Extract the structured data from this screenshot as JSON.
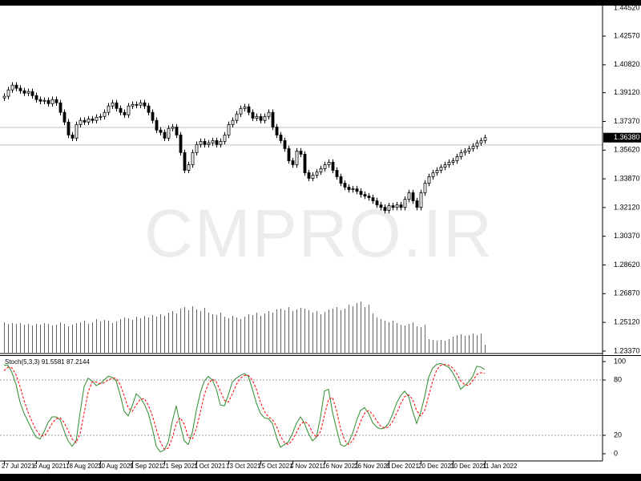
{
  "chart_data": [
    {
      "type": "candlestick",
      "watermark": "CMPRO.IR",
      "categories": [
        "27 Jul 2021",
        null,
        null,
        null,
        null,
        null,
        null,
        null,
        "6 Aug 2021",
        null,
        null,
        null,
        null,
        null,
        null,
        null,
        "18 Aug 2021",
        null,
        null,
        null,
        null,
        null,
        null,
        null,
        "30 Aug 2021",
        null,
        null,
        null,
        null,
        null,
        null,
        null,
        "9 Sep 2021",
        null,
        null,
        null,
        null,
        null,
        null,
        null,
        "21 Sep 2021",
        null,
        null,
        null,
        null,
        null,
        null,
        null,
        "1 Oct 2021",
        null,
        null,
        null,
        null,
        null,
        null,
        null,
        "13 Oct 2021",
        null,
        null,
        null,
        null,
        null,
        null,
        null,
        "25 Oct 2021",
        null,
        null,
        null,
        null,
        null,
        null,
        null,
        "4 Nov 2021",
        null,
        null,
        null,
        null,
        null,
        null,
        null,
        "16 Nov 2021",
        null,
        null,
        null,
        null,
        null,
        null,
        null,
        "26 Nov 2021",
        null,
        null,
        null,
        null,
        null,
        null,
        null,
        "8 Dec 2021",
        null,
        null,
        null,
        null,
        null,
        null,
        null,
        "20 Dec 2021",
        null,
        null,
        null,
        null,
        null,
        null,
        null,
        "30 Dec 2021",
        null,
        null,
        null,
        null,
        null,
        null,
        null,
        "11 Jan 2022"
      ],
      "open": [
        1.388,
        1.389,
        1.3929,
        1.3958,
        1.3939,
        1.3924,
        1.3909,
        1.3919,
        1.3894,
        1.387,
        1.386,
        1.3865,
        1.3845,
        1.387,
        1.385,
        1.3792,
        1.3733,
        1.3654,
        1.3635,
        1.3718,
        1.3743,
        1.3733,
        1.3752,
        1.3743,
        1.3762,
        1.3767,
        1.3792,
        1.3831,
        1.385,
        1.3816,
        1.3792,
        1.3777,
        1.3831,
        1.384,
        1.3836,
        1.385,
        1.3831,
        1.3792,
        1.3743,
        1.3684,
        1.367,
        1.3635,
        1.3694,
        1.3703,
        1.3654,
        1.3547,
        1.3439,
        1.3473,
        1.3547,
        1.3596,
        1.3615,
        1.3596,
        1.3606,
        1.362,
        1.3596,
        1.3615,
        1.3654,
        1.3718,
        1.3743,
        1.3782,
        1.3816,
        1.3826,
        1.3792,
        1.3757,
        1.3767,
        1.3743,
        1.3767,
        1.3792,
        1.3703,
        1.3654,
        1.362,
        1.3571,
        1.3497,
        1.3473,
        1.3556,
        1.3537,
        1.3424,
        1.339,
        1.3409,
        1.3429,
        1.3449,
        1.3473,
        1.3488,
        1.3439,
        1.34,
        1.336,
        1.3336,
        1.3321,
        1.3326,
        1.3311,
        1.3292,
        1.3282,
        1.3272,
        1.3253,
        1.3228,
        1.3213,
        1.3194,
        1.3223,
        1.3213,
        1.3228,
        1.3213,
        1.3262,
        1.3302,
        1.3253,
        1.3213,
        1.3302,
        1.336,
        1.34,
        1.3424,
        1.3439,
        1.3458,
        1.3473,
        1.3488,
        1.3497,
        1.3522,
        1.3547,
        1.3556,
        1.3571,
        1.3586,
        1.3606,
        1.362
      ],
      "high": [
        1.3908,
        1.3947,
        1.3976,
        1.3976,
        1.3957,
        1.3942,
        1.3937,
        1.3937,
        1.3912,
        1.3888,
        1.3883,
        1.3883,
        1.3888,
        1.3888,
        1.3868,
        1.381,
        1.3751,
        1.3672,
        1.3736,
        1.3761,
        1.3761,
        1.377,
        1.377,
        1.378,
        1.3785,
        1.381,
        1.3849,
        1.3868,
        1.3868,
        1.3834,
        1.381,
        1.3849,
        1.3858,
        1.3858,
        1.3868,
        1.3868,
        1.3849,
        1.381,
        1.3761,
        1.3702,
        1.3688,
        1.3712,
        1.3721,
        1.3721,
        1.3672,
        1.3565,
        1.3491,
        1.3565,
        1.3614,
        1.3633,
        1.3633,
        1.3624,
        1.3638,
        1.3638,
        1.3633,
        1.3672,
        1.3736,
        1.3761,
        1.38,
        1.3834,
        1.3844,
        1.3844,
        1.381,
        1.3785,
        1.3785,
        1.3785,
        1.381,
        1.381,
        1.3721,
        1.3672,
        1.3638,
        1.3589,
        1.3515,
        1.3574,
        1.3574,
        1.3555,
        1.3442,
        1.3427,
        1.3447,
        1.3467,
        1.3491,
        1.3506,
        1.3506,
        1.3457,
        1.3418,
        1.3378,
        1.3354,
        1.3344,
        1.3344,
        1.3329,
        1.331,
        1.33,
        1.329,
        1.3271,
        1.3246,
        1.3231,
        1.3241,
        1.3241,
        1.3246,
        1.3246,
        1.328,
        1.332,
        1.332,
        1.3271,
        1.332,
        1.3378,
        1.3418,
        1.3442,
        1.3457,
        1.3476,
        1.3491,
        1.3506,
        1.3515,
        1.354,
        1.3565,
        1.3574,
        1.3589,
        1.3604,
        1.3624,
        1.3638,
        1.3656
      ],
      "low": [
        1.3862,
        1.3872,
        1.3911,
        1.3921,
        1.3906,
        1.3891,
        1.3891,
        1.3876,
        1.3852,
        1.3842,
        1.3842,
        1.3827,
        1.3827,
        1.3832,
        1.3774,
        1.3715,
        1.3636,
        1.3617,
        1.3617,
        1.37,
        1.3715,
        1.3715,
        1.3725,
        1.3725,
        1.3744,
        1.3749,
        1.3774,
        1.3813,
        1.3798,
        1.3774,
        1.3759,
        1.3759,
        1.3813,
        1.3818,
        1.3818,
        1.3813,
        1.3774,
        1.3725,
        1.3666,
        1.3652,
        1.3617,
        1.3617,
        1.3676,
        1.3636,
        1.3529,
        1.3421,
        1.3421,
        1.3455,
        1.3529,
        1.3578,
        1.3578,
        1.3578,
        1.3588,
        1.3578,
        1.3578,
        1.3597,
        1.3636,
        1.37,
        1.3725,
        1.3764,
        1.3798,
        1.3774,
        1.3739,
        1.3739,
        1.3725,
        1.3725,
        1.3749,
        1.3685,
        1.3636,
        1.3602,
        1.3553,
        1.3479,
        1.3455,
        1.3455,
        1.3519,
        1.3406,
        1.3372,
        1.3372,
        1.3391,
        1.3411,
        1.3431,
        1.3455,
        1.3421,
        1.3382,
        1.3342,
        1.3318,
        1.3303,
        1.3303,
        1.3293,
        1.3274,
        1.3264,
        1.3254,
        1.3235,
        1.321,
        1.3195,
        1.3176,
        1.3176,
        1.3195,
        1.3195,
        1.3195,
        1.3195,
        1.3244,
        1.3235,
        1.3195,
        1.3195,
        1.3284,
        1.3342,
        1.3382,
        1.3406,
        1.3421,
        1.344,
        1.3455,
        1.347,
        1.3479,
        1.3504,
        1.3529,
        1.3538,
        1.3553,
        1.3568,
        1.3588,
        1.3602
      ],
      "close": [
        1.389,
        1.3929,
        1.3958,
        1.3939,
        1.3924,
        1.3909,
        1.3919,
        1.3894,
        1.387,
        1.386,
        1.3865,
        1.3845,
        1.387,
        1.385,
        1.3792,
        1.3733,
        1.3654,
        1.3635,
        1.3718,
        1.3743,
        1.3733,
        1.3752,
        1.3743,
        1.3762,
        1.3767,
        1.3792,
        1.3831,
        1.385,
        1.3816,
        1.3792,
        1.3777,
        1.3831,
        1.384,
        1.3836,
        1.385,
        1.3831,
        1.3792,
        1.3743,
        1.3684,
        1.367,
        1.3635,
        1.3694,
        1.3703,
        1.3654,
        1.3547,
        1.3439,
        1.3473,
        1.3547,
        1.3596,
        1.3615,
        1.3596,
        1.3606,
        1.362,
        1.3596,
        1.3615,
        1.3654,
        1.3718,
        1.3743,
        1.3782,
        1.3816,
        1.3826,
        1.3792,
        1.3757,
        1.3767,
        1.3743,
        1.3767,
        1.3792,
        1.3703,
        1.3654,
        1.362,
        1.3571,
        1.3497,
        1.3473,
        1.3556,
        1.3537,
        1.3424,
        1.339,
        1.3409,
        1.3429,
        1.3449,
        1.3473,
        1.3488,
        1.3439,
        1.34,
        1.336,
        1.3336,
        1.3321,
        1.3326,
        1.3311,
        1.3292,
        1.3282,
        1.3272,
        1.3253,
        1.3228,
        1.3213,
        1.3194,
        1.3223,
        1.3213,
        1.3228,
        1.3213,
        1.3262,
        1.3302,
        1.3253,
        1.3213,
        1.3302,
        1.336,
        1.34,
        1.3424,
        1.3439,
        1.3458,
        1.3473,
        1.3488,
        1.3497,
        1.3522,
        1.3547,
        1.3556,
        1.3571,
        1.3586,
        1.3606,
        1.362,
        1.3638
      ],
      "volume": [
        38,
        36,
        37,
        36,
        37,
        35,
        36,
        34,
        36,
        35,
        37,
        36,
        34,
        35,
        38,
        36,
        33,
        35,
        37,
        38,
        40,
        36,
        38,
        42,
        39,
        41,
        40,
        37,
        39,
        42,
        44,
        43,
        41,
        45,
        43,
        46,
        44,
        47,
        45,
        48,
        46,
        50,
        52,
        49,
        55,
        57,
        53,
        58,
        54,
        52,
        56,
        50,
        48,
        47,
        50,
        45,
        43,
        46,
        44,
        42,
        45,
        48,
        47,
        50,
        46,
        49,
        52,
        50,
        54,
        55,
        53,
        57,
        52,
        54,
        56,
        55,
        53,
        50,
        52,
        48,
        51,
        54,
        55,
        57,
        53,
        55,
        60,
        58,
        62,
        64,
        57,
        60,
        49,
        44,
        42,
        40,
        38,
        40,
        37,
        35,
        34,
        36,
        38,
        33,
        32,
        35,
        17,
        16,
        15,
        16,
        15,
        17,
        20,
        22,
        23,
        21,
        22,
        24,
        22,
        24,
        10
      ],
      "volume_ylim": [
        0,
        100
      ],
      "volume_color": "#666666",
      "up_color": "#ffffff",
      "down_color": "#000000",
      "wick_color": "#000000",
      "ylim": [
        1.2322,
        1.4438
      ],
      "yticks": [
        {
          "value": 1.4452,
          "label": "1.44520"
        },
        {
          "value": 1.4257,
          "label": "1.42570"
        },
        {
          "value": 1.4082,
          "label": "1.40820"
        },
        {
          "value": 1.3912,
          "label": "1.39120"
        },
        {
          "value": 1.3737,
          "label": "1.37370"
        },
        {
          "value": 1.3562,
          "label": "1.35620"
        },
        {
          "value": 1.3387,
          "label": "1.33870"
        },
        {
          "value": 1.3212,
          "label": "1.32120"
        },
        {
          "value": 1.3037,
          "label": "1.30370"
        },
        {
          "value": 1.2862,
          "label": "1.28620"
        },
        {
          "value": 1.2687,
          "label": "1.26870"
        },
        {
          "value": 1.2512,
          "label": "1.25120"
        },
        {
          "value": 1.2337,
          "label": "1.23370"
        }
      ],
      "hlines": [
        1.37,
        1.3593
      ],
      "current_price": {
        "value": 1.3638,
        "label": "1.36380"
      }
    },
    {
      "type": "line",
      "title": "Stoch(5,3,3)",
      "ylim": [
        -7.8,
        107
      ],
      "yticks": [
        0,
        20,
        80,
        100
      ],
      "levels": [
        20,
        80
      ],
      "series": [
        {
          "color": "#2e8b2e",
          "dashed": false,
          "values": [
            96,
            96,
            88,
            75,
            56,
            44,
            35,
            26,
            18,
            16,
            24,
            34,
            40,
            40,
            37,
            25,
            14,
            8,
            14,
            45,
            73,
            82,
            79,
            74,
            76,
            80,
            84,
            83,
            79,
            64,
            46,
            41,
            52,
            65,
            61,
            54,
            44,
            28,
            8,
            2,
            4,
            13,
            35,
            52,
            31,
            14,
            10,
            23,
            47,
            66,
            79,
            84,
            80,
            70,
            53,
            52,
            64,
            78,
            82,
            85,
            87,
            84,
            70,
            55,
            44,
            39,
            38,
            33,
            18,
            7,
            10,
            13,
            22,
            33,
            40,
            33,
            22,
            14,
            18,
            40,
            68,
            70,
            45,
            27,
            10,
            8,
            12,
            22,
            36,
            47,
            50,
            44,
            34,
            29,
            27,
            28,
            33,
            43,
            55,
            63,
            68,
            62,
            46,
            33,
            45,
            62,
            83,
            93,
            97,
            98,
            96,
            94,
            88,
            80,
            70,
            74,
            78,
            84,
            95,
            94,
            91.5581
          ]
        },
        {
          "color": "#ff0000",
          "dashed": true,
          "values": [
            90,
            94,
            93,
            86,
            73,
            58,
            45,
            35,
            26,
            20,
            19,
            25,
            33,
            38,
            39,
            34,
            25,
            16,
            12,
            22,
            44,
            67,
            78,
            78,
            76,
            77,
            80,
            82,
            82,
            75,
            63,
            50,
            46,
            53,
            59,
            60,
            53,
            42,
            27,
            13,
            5,
            6,
            17,
            33,
            39,
            32,
            18,
            16,
            27,
            45,
            64,
            76,
            81,
            78,
            68,
            58,
            56,
            65,
            75,
            82,
            85,
            85,
            80,
            70,
            56,
            46,
            40,
            37,
            30,
            19,
            12,
            10,
            15,
            23,
            32,
            35,
            32,
            23,
            18,
            24,
            42,
            59,
            61,
            47,
            27,
            15,
            10,
            14,
            23,
            35,
            44,
            47,
            43,
            36,
            30,
            28,
            29,
            35,
            44,
            54,
            62,
            64,
            59,
            47,
            41,
            47,
            63,
            79,
            91,
            96,
            97,
            96,
            93,
            87,
            79,
            75,
            74,
            79,
            86,
            88,
            87.2144
          ]
        }
      ]
    }
  ]
}
